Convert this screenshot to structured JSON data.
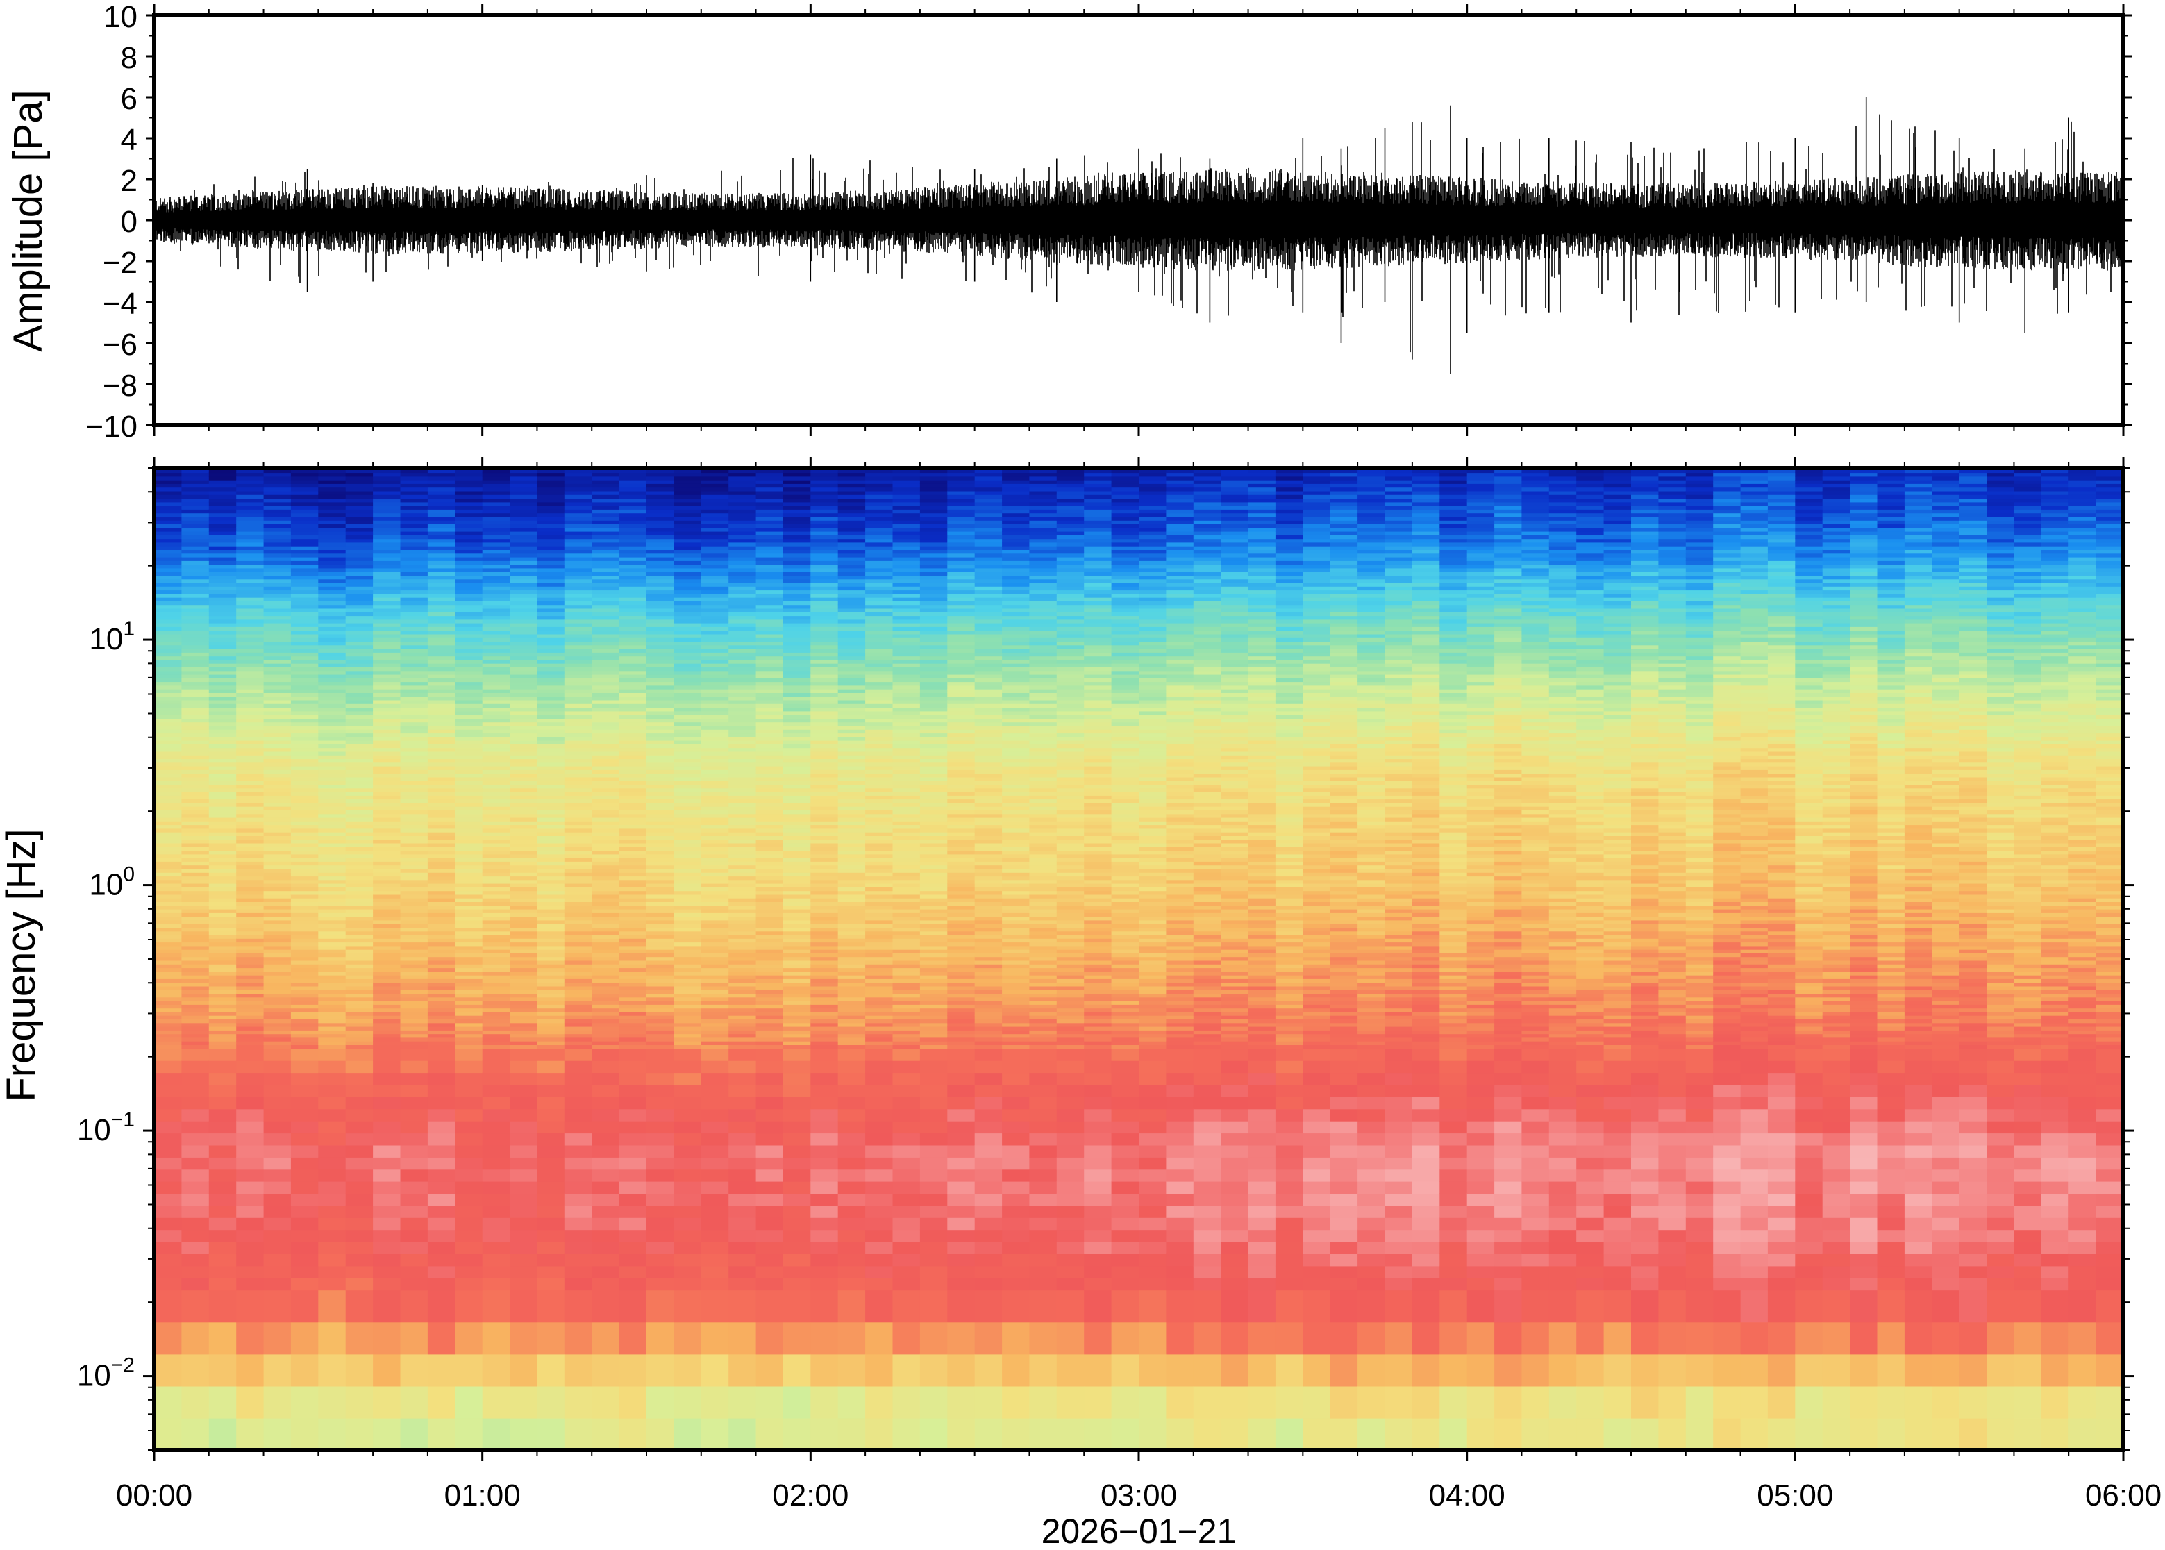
{
  "chart_data": [
    {
      "type": "line",
      "panel": "waveform",
      "ylabel": "Amplitude [Pa]",
      "ylim": [
        -10,
        10
      ],
      "yticks": [
        "10",
        "8",
        "6",
        "4",
        "2",
        "0",
        "−2",
        "−4",
        "−6",
        "−8",
        "−10"
      ],
      "xlim": [
        "00:00",
        "06:00"
      ],
      "series": [
        {
          "time": [
            "00:00",
            "00:28",
            "00:40",
            "01:00",
            "01:30",
            "02:00",
            "02:30",
            "02:45",
            "03:00",
            "03:13",
            "03:30",
            "03:37",
            "03:45",
            "03:50",
            "03:57",
            "04:00",
            "04:15",
            "04:30",
            "05:00",
            "05:13",
            "05:30",
            "05:42",
            "05:50",
            "06:00"
          ],
          "max_envelope": [
            1.5,
            2.5,
            1.8,
            1.7,
            2.2,
            3.2,
            2.5,
            3.0,
            3.5,
            3.0,
            4.0,
            3.5,
            4.5,
            4.8,
            5.6,
            4.0,
            4.0,
            3.8,
            4.0,
            6.0,
            4.0,
            3.5,
            5.0,
            4.0
          ],
          "min_envelope": [
            -1.5,
            -3.5,
            -3.0,
            -2.0,
            -2.5,
            -3.0,
            -3.0,
            -4.0,
            -3.5,
            -5.0,
            -4.5,
            -6.0,
            -4.0,
            -6.8,
            -7.5,
            -5.5,
            -4.5,
            -5.0,
            -4.5,
            -4.0,
            -5.0,
            -5.5,
            -4.5,
            -3.5
          ]
        }
      ],
      "color": "#000000"
    },
    {
      "type": "heatmap",
      "panel": "spectrogram",
      "ylabel": "Frequency [Hz]",
      "yscale": "log",
      "ylim": [
        0.005,
        50
      ],
      "yticks": [
        {
          "base": "10",
          "exp": "−2",
          "value": 0.01
        },
        {
          "base": "10",
          "exp": "−1",
          "value": 0.1
        },
        {
          "base": "10",
          "exp": "0",
          "value": 1
        },
        {
          "base": "10",
          "exp": "1",
          "value": 10
        }
      ],
      "xlabel": "2026−01−21",
      "xticks": [
        "00:00",
        "01:00",
        "02:00",
        "03:00",
        "04:00",
        "05:00",
        "06:00"
      ],
      "xlim": [
        "00:00",
        "06:00"
      ],
      "colormap": [
        "#0b0b7a",
        "#0a2ec8",
        "#1a8ff0",
        "#4fd3e8",
        "#8ee0b0",
        "#d7ef98",
        "#f3e07e",
        "#f8b660",
        "#f56e5a",
        "#f05a5a",
        "#f7a3a3",
        "#fbd3d3"
      ],
      "power_profile_by_frequency": [
        {
          "freq": 0.005,
          "level": 0.45
        },
        {
          "freq": 0.008,
          "level": 0.5
        },
        {
          "freq": 0.012,
          "level": 0.62
        },
        {
          "freq": 0.02,
          "level": 0.75
        },
        {
          "freq": 0.04,
          "level": 0.82
        },
        {
          "freq": 0.08,
          "level": 0.84
        },
        {
          "freq": 0.15,
          "level": 0.76
        },
        {
          "freq": 0.3,
          "level": 0.66
        },
        {
          "freq": 1,
          "level": 0.56
        },
        {
          "freq": 3,
          "level": 0.5
        },
        {
          "freq": 6,
          "level": 0.4
        },
        {
          "freq": 12,
          "level": 0.28
        },
        {
          "freq": 25,
          "level": 0.12
        },
        {
          "freq": 50,
          "level": 0.03
        }
      ],
      "power_trend_by_time": [
        {
          "time": "00:00",
          "offset": 0.0
        },
        {
          "time": "01:00",
          "offset": 0.0
        },
        {
          "time": "02:00",
          "offset": 0.01
        },
        {
          "time": "03:00",
          "offset": 0.03
        },
        {
          "time": "04:00",
          "offset": 0.05
        },
        {
          "time": "05:00",
          "offset": 0.05
        },
        {
          "time": "06:00",
          "offset": 0.06
        }
      ]
    }
  ]
}
